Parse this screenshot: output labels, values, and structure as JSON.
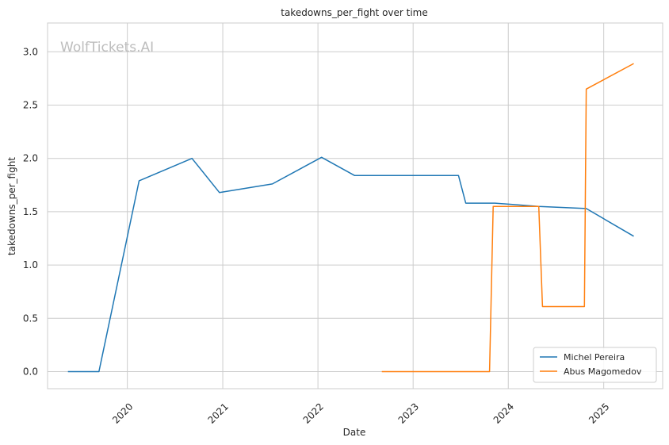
{
  "chart_data": {
    "type": "line",
    "title": "takedowns_per_fight over time",
    "xlabel": "Date",
    "ylabel": "takedowns_per_fight",
    "watermark": "WolfTickets.AI",
    "x_ticks": [
      "2020",
      "2021",
      "2022",
      "2023",
      "2024",
      "2025"
    ],
    "y_ticks": [
      "0.0",
      "0.5",
      "1.0",
      "1.5",
      "2.0",
      "2.5",
      "3.0"
    ],
    "xlim": [
      "2019-03-01",
      "2025-08-15"
    ],
    "ylim": [
      -0.16,
      3.27
    ],
    "grid": true,
    "legend_position": "bottom-right",
    "series": [
      {
        "name": "Michel Pereira",
        "color": "#1f77b4",
        "points": [
          [
            "2019-05-18",
            0.0
          ],
          [
            "2019-09-14",
            0.0
          ],
          [
            "2020-02-15",
            1.79
          ],
          [
            "2020-09-05",
            2.0
          ],
          [
            "2020-12-19",
            1.68
          ],
          [
            "2021-07-10",
            1.76
          ],
          [
            "2022-01-15",
            2.01
          ],
          [
            "2022-05-21",
            1.84
          ],
          [
            "2023-06-24",
            1.84
          ],
          [
            "2023-07-22",
            1.58
          ],
          [
            "2023-11-11",
            1.58
          ],
          [
            "2024-04-27",
            1.55
          ],
          [
            "2024-10-26",
            1.53
          ],
          [
            "2025-04-26",
            1.27
          ]
        ]
      },
      {
        "name": "Abus Magomedov",
        "color": "#ff7f0e",
        "points": [
          [
            "2022-09-03",
            0.0
          ],
          [
            "2023-10-21",
            0.0
          ],
          [
            "2023-11-04",
            1.55
          ],
          [
            "2024-04-27",
            1.55
          ],
          [
            "2024-05-11",
            0.61
          ],
          [
            "2024-10-19",
            0.61
          ],
          [
            "2024-10-26",
            2.65
          ],
          [
            "2025-04-26",
            2.89
          ]
        ]
      }
    ]
  }
}
